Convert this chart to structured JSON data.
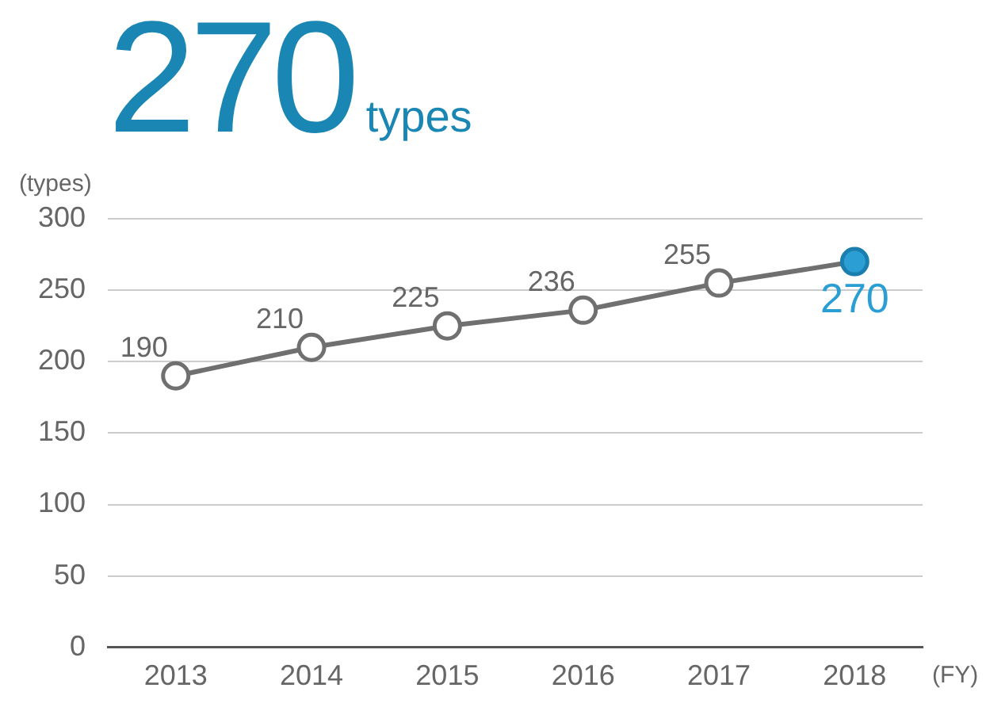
{
  "chart_data": {
    "type": "line",
    "title": "270",
    "subtitle": "types",
    "ylabel": "(types)",
    "xlabel": "(FY)",
    "categories": [
      "2013",
      "2014",
      "2015",
      "2016",
      "2017",
      "2018"
    ],
    "series": [
      {
        "color": "#707070",
        "values": [
          190,
          210,
          225,
          236,
          255,
          270
        ],
        "colors": [
          "#ffffff",
          "#ffffff",
          "#ffffff",
          "#ffffff",
          "#ffffff",
          "#2b9fd4"
        ]
      }
    ],
    "ylim": [
      0,
      300
    ],
    "yticks": [
      0,
      50,
      100,
      150,
      200,
      250,
      300
    ],
    "grid": "y",
    "legend": false,
    "marker": "circle",
    "line_style": "solid",
    "data_labels": true
  }
}
